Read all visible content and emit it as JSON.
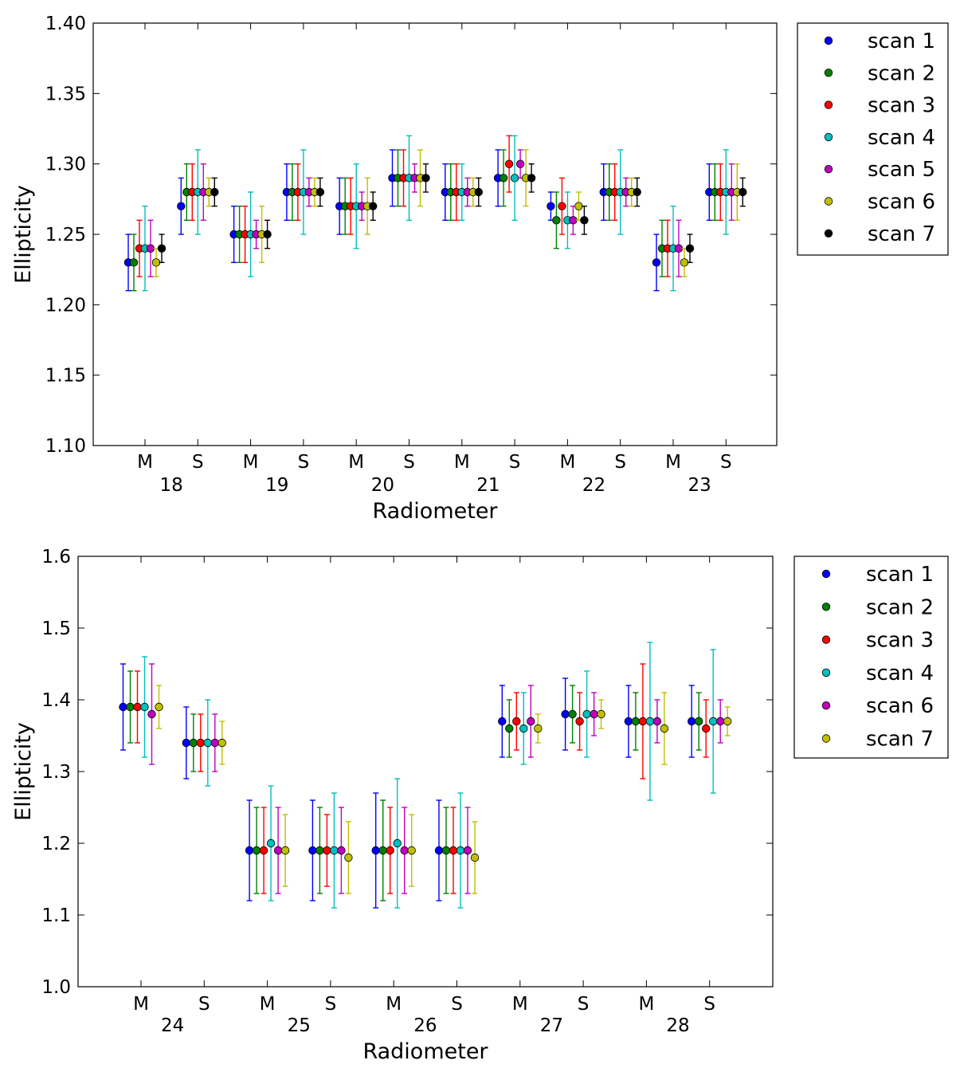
{
  "chart_data": [
    {
      "type": "scatter",
      "title": "",
      "xlabel": "Radiometer",
      "ylabel": "Ellipticity",
      "ylim": [
        1.1,
        1.4
      ],
      "yticks": [
        "1.10",
        "1.15",
        "1.20",
        "1.25",
        "1.30",
        "1.35",
        "1.40"
      ],
      "radiometers": [
        "18",
        "19",
        "20",
        "21",
        "22",
        "23"
      ],
      "arms": [
        "M",
        "S",
        "M",
        "S",
        "M",
        "S",
        "M",
        "S",
        "M",
        "S",
        "M",
        "S"
      ],
      "grid": false,
      "legend_position": "outside-right-top",
      "series": [
        {
          "name": "scan 1",
          "color": "#0000ff",
          "values": [
            1.23,
            1.27,
            1.25,
            1.28,
            1.27,
            1.29,
            1.28,
            1.29,
            1.27,
            1.28,
            1.23,
            1.28
          ],
          "errors": [
            0.02,
            0.02,
            0.02,
            0.02,
            0.02,
            0.02,
            0.02,
            0.02,
            0.01,
            0.02,
            0.02,
            0.02
          ]
        },
        {
          "name": "scan 2",
          "color": "#008000",
          "values": [
            1.23,
            1.28,
            1.25,
            1.28,
            1.27,
            1.29,
            1.28,
            1.29,
            1.26,
            1.28,
            1.24,
            1.28
          ],
          "errors": [
            0.02,
            0.02,
            0.02,
            0.02,
            0.02,
            0.02,
            0.02,
            0.02,
            0.02,
            0.02,
            0.02,
            0.02
          ]
        },
        {
          "name": "scan 3",
          "color": "#ff0000",
          "values": [
            1.24,
            1.28,
            1.25,
            1.28,
            1.27,
            1.29,
            1.28,
            1.3,
            1.27,
            1.28,
            1.24,
            1.28
          ],
          "errors": [
            0.02,
            0.02,
            0.02,
            0.02,
            0.02,
            0.02,
            0.02,
            0.02,
            0.02,
            0.02,
            0.02,
            0.02
          ]
        },
        {
          "name": "scan 4",
          "color": "#00bfbf",
          "values": [
            1.24,
            1.28,
            1.25,
            1.28,
            1.27,
            1.29,
            1.28,
            1.29,
            1.26,
            1.28,
            1.24,
            1.28
          ],
          "errors": [
            0.03,
            0.03,
            0.03,
            0.03,
            0.03,
            0.03,
            0.02,
            0.03,
            0.02,
            0.03,
            0.03,
            0.03
          ]
        },
        {
          "name": "scan 5",
          "color": "#bf00bf",
          "values": [
            1.24,
            1.28,
            1.25,
            1.28,
            1.27,
            1.29,
            1.28,
            1.3,
            1.26,
            1.28,
            1.24,
            1.28
          ],
          "errors": [
            0.02,
            0.02,
            0.01,
            0.01,
            0.01,
            0.01,
            0.01,
            0.01,
            0.01,
            0.01,
            0.02,
            0.02
          ]
        },
        {
          "name": "scan 6",
          "color": "#bfbf00",
          "values": [
            1.23,
            1.28,
            1.25,
            1.28,
            1.27,
            1.29,
            1.28,
            1.29,
            1.27,
            1.28,
            1.23,
            1.28
          ],
          "errors": [
            0.01,
            0.01,
            0.02,
            0.01,
            0.02,
            0.02,
            0.01,
            0.02,
            0.01,
            0.01,
            0.01,
            0.02
          ]
        },
        {
          "name": "scan 7",
          "color": "#000000",
          "values": [
            1.24,
            1.28,
            1.25,
            1.28,
            1.27,
            1.29,
            1.28,
            1.29,
            1.26,
            1.28,
            1.24,
            1.28
          ],
          "errors": [
            0.01,
            0.01,
            0.01,
            0.01,
            0.01,
            0.01,
            0.01,
            0.01,
            0.01,
            0.01,
            0.01,
            0.01
          ]
        }
      ]
    },
    {
      "type": "scatter",
      "title": "",
      "xlabel": "Radiometer",
      "ylabel": "Ellipticity",
      "ylim": [
        1.0,
        1.6
      ],
      "yticks": [
        "1.0",
        "1.1",
        "1.2",
        "1.3",
        "1.4",
        "1.5",
        "1.6"
      ],
      "radiometers": [
        "24",
        "25",
        "26",
        "27",
        "28"
      ],
      "arms": [
        "M",
        "S",
        "M",
        "S",
        "M",
        "S",
        "M",
        "S",
        "M",
        "S"
      ],
      "grid": false,
      "legend_position": "outside-right-top",
      "series": [
        {
          "name": "scan 1",
          "color": "#0000ff",
          "values": [
            1.39,
            1.34,
            1.19,
            1.19,
            1.19,
            1.19,
            1.37,
            1.38,
            1.37,
            1.37
          ],
          "errors": [
            0.06,
            0.05,
            0.07,
            0.07,
            0.08,
            0.07,
            0.05,
            0.05,
            0.05,
            0.05
          ]
        },
        {
          "name": "scan 2",
          "color": "#008000",
          "values": [
            1.39,
            1.34,
            1.19,
            1.19,
            1.19,
            1.19,
            1.36,
            1.38,
            1.37,
            1.37
          ],
          "errors": [
            0.05,
            0.04,
            0.06,
            0.06,
            0.07,
            0.06,
            0.04,
            0.04,
            0.04,
            0.04
          ]
        },
        {
          "name": "scan 3",
          "color": "#ff0000",
          "values": [
            1.39,
            1.34,
            1.19,
            1.19,
            1.19,
            1.19,
            1.37,
            1.37,
            1.37,
            1.36
          ],
          "errors": [
            0.05,
            0.04,
            0.06,
            0.05,
            0.06,
            0.06,
            0.04,
            0.04,
            0.08,
            0.04
          ]
        },
        {
          "name": "scan 4",
          "color": "#00bfbf",
          "values": [
            1.39,
            1.34,
            1.2,
            1.19,
            1.2,
            1.19,
            1.36,
            1.38,
            1.37,
            1.37
          ],
          "errors": [
            0.07,
            0.06,
            0.08,
            0.08,
            0.09,
            0.08,
            0.05,
            0.06,
            0.11,
            0.1
          ]
        },
        {
          "name": "scan 6",
          "color": "#bf00bf",
          "values": [
            1.38,
            1.34,
            1.19,
            1.19,
            1.19,
            1.19,
            1.37,
            1.38,
            1.37,
            1.37
          ],
          "errors": [
            0.07,
            0.04,
            0.06,
            0.06,
            0.06,
            0.06,
            0.05,
            0.03,
            0.03,
            0.03
          ]
        },
        {
          "name": "scan 7",
          "color": "#bfbf00",
          "values": [
            1.39,
            1.34,
            1.19,
            1.18,
            1.19,
            1.18,
            1.36,
            1.38,
            1.36,
            1.37
          ],
          "errors": [
            0.03,
            0.03,
            0.05,
            0.05,
            0.05,
            0.05,
            0.02,
            0.02,
            0.05,
            0.02
          ]
        }
      ]
    }
  ]
}
